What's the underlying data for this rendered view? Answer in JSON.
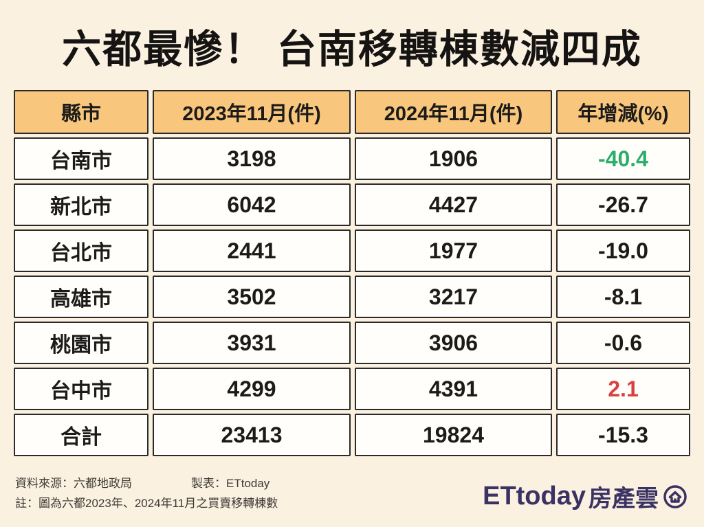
{
  "title": "六都最慘！ 台南移轉棟數減四成",
  "table": {
    "headers": [
      "縣市",
      "2023年11月(件)",
      "2024年11月(件)",
      "年增減(%)"
    ],
    "rows": [
      {
        "city": "台南市",
        "v2023": "3198",
        "v2024": "1906",
        "change": "-40.4",
        "change_color": "green"
      },
      {
        "city": "新北市",
        "v2023": "6042",
        "v2024": "4427",
        "change": "-26.7",
        "change_color": "black"
      },
      {
        "city": "台北市",
        "v2023": "2441",
        "v2024": "1977",
        "change": "-19.0",
        "change_color": "black"
      },
      {
        "city": "高雄市",
        "v2023": "3502",
        "v2024": "3217",
        "change": "-8.1",
        "change_color": "black"
      },
      {
        "city": "桃園市",
        "v2023": "3931",
        "v2024": "3906",
        "change": "-0.6",
        "change_color": "black"
      },
      {
        "city": "台中市",
        "v2023": "4299",
        "v2024": "4391",
        "change": "2.1",
        "change_color": "red"
      },
      {
        "city": "合計",
        "v2023": "23413",
        "v2024": "19824",
        "change": "-15.3",
        "change_color": "black"
      }
    ]
  },
  "chart_data": {
    "type": "table",
    "title": "六都最慘！ 台南移轉棟數減四成",
    "columns": [
      "縣市",
      "2023年11月(件)",
      "2024年11月(件)",
      "年增減(%)"
    ],
    "rows": [
      [
        "台南市",
        3198,
        1906,
        -40.4
      ],
      [
        "新北市",
        6042,
        4427,
        -26.7
      ],
      [
        "台北市",
        2441,
        1977,
        -19.0
      ],
      [
        "高雄市",
        3502,
        3217,
        -8.1
      ],
      [
        "桃園市",
        3931,
        3906,
        -0.6
      ],
      [
        "台中市",
        4299,
        4391,
        2.1
      ],
      [
        "合計",
        23413,
        19824,
        -15.3
      ]
    ],
    "highlights": {
      "台南市_change": "green",
      "台中市_change": "red"
    }
  },
  "footer": {
    "source": "資料來源：六都地政局",
    "credit": "製表：ETtoday",
    "note": "註：圖為六都2023年、2024年11月之買賣移轉棟數"
  },
  "logo": {
    "brand": "ETtoday",
    "suffix": "房產雲",
    "icon": "house-in-circle-icon"
  },
  "colors": {
    "background": "#FBF1E1",
    "header_bg": "#F8C77D",
    "cell_bg": "#FFFEFB",
    "border": "#2B2A28",
    "text": "#1C1B19",
    "negative_highlight_green": "#2BAD6B",
    "positive_red": "#D84040",
    "logo": "#3A3263"
  }
}
